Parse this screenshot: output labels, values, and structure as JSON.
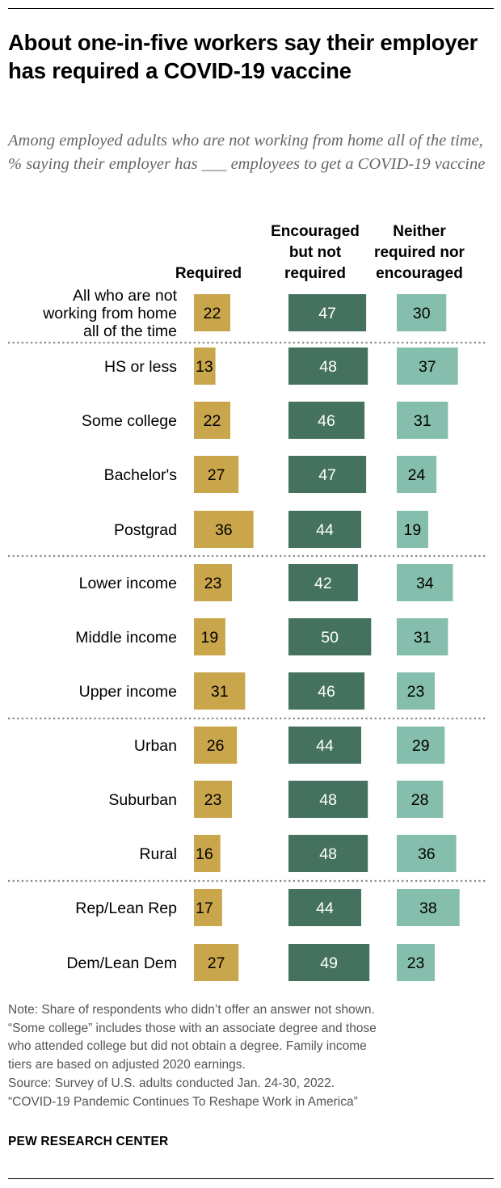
{
  "title": "About one-in-five workers say their employer has required a COVID-19 vaccine",
  "subtitle": "Among employed adults who are not working from home all of the time, % saying their employer has ___ employees to get a COVID-19 vaccine",
  "notes": {
    "note_lines": [
      "Note: Share of respondents who didn’t offer an answer not shown.",
      "“Some college” includes those with an associate degree and those",
      "who attended college but did not obtain a degree. Family income",
      "tiers are based on adjusted 2020 earnings."
    ],
    "source_lines": [
      "Source: Survey of U.S. adults conducted Jan. 24-30, 2022.",
      "“COVID-19 Pandemic Continues To Reshape Work in America”"
    ]
  },
  "brand": "PEW RESEARCH CENTER",
  "colors": {
    "required": "#C9A54B",
    "encouraged": "#44725F",
    "neither": "#85BEAD",
    "separator": "#888888"
  },
  "chart_data": {
    "type": "bar",
    "orientation": "horizontal",
    "layout": "side-by-side columns",
    "series": [
      {
        "name": "Required",
        "header_lines": [
          "Required"
        ]
      },
      {
        "name": "Encouraged but not required",
        "header_lines": [
          "Encouraged",
          "but not",
          "required"
        ]
      },
      {
        "name": "Neither required nor encouraged",
        "header_lines": [
          "Neither",
          "required nor",
          "encouraged"
        ]
      }
    ],
    "rows": [
      {
        "label_lines": [
          "All who are not",
          "working from home",
          "all of the time"
        ],
        "values": [
          22,
          47,
          30
        ],
        "group": 0
      },
      {
        "label_lines": [
          "HS or less"
        ],
        "values": [
          13,
          48,
          37
        ],
        "group": 1
      },
      {
        "label_lines": [
          "Some college"
        ],
        "values": [
          22,
          46,
          31
        ],
        "group": 1
      },
      {
        "label_lines": [
          "Bachelor's"
        ],
        "values": [
          27,
          47,
          24
        ],
        "group": 1
      },
      {
        "label_lines": [
          "Postgrad"
        ],
        "values": [
          36,
          44,
          19
        ],
        "group": 1
      },
      {
        "label_lines": [
          "Lower income"
        ],
        "values": [
          23,
          42,
          34
        ],
        "group": 2
      },
      {
        "label_lines": [
          "Middle income"
        ],
        "values": [
          19,
          50,
          31
        ],
        "group": 2
      },
      {
        "label_lines": [
          "Upper income"
        ],
        "values": [
          31,
          46,
          23
        ],
        "group": 2
      },
      {
        "label_lines": [
          "Urban"
        ],
        "values": [
          26,
          44,
          29
        ],
        "group": 3
      },
      {
        "label_lines": [
          "Suburban"
        ],
        "values": [
          23,
          48,
          28
        ],
        "group": 3
      },
      {
        "label_lines": [
          "Rural"
        ],
        "values": [
          16,
          48,
          36
        ],
        "group": 3
      },
      {
        "label_lines": [
          "Rep/Lean Rep"
        ],
        "values": [
          17,
          44,
          38
        ],
        "group": 4
      },
      {
        "label_lines": [
          "Dem/Lean Dem"
        ],
        "values": [
          27,
          49,
          23
        ],
        "group": 4
      }
    ],
    "value_unit": "%",
    "grid": false,
    "legend": "column headers"
  }
}
